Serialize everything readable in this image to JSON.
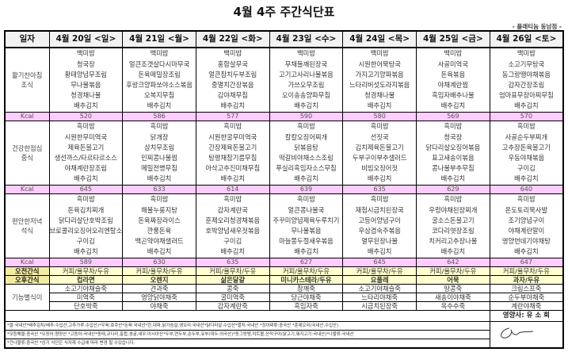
{
  "title": "4월 4주 주간식단표",
  "branch": "- 플래티늄 동남점 -",
  "header_label": "일자",
  "days": [
    "4월 20일 <일>",
    "4월 21일 <월>",
    "4월 22일 <화>",
    "4월 23일 <수>",
    "4월 24일 <목>",
    "4월 25일 <금>",
    "4월 26일 <토>"
  ],
  "kcal_label": "Kcal",
  "meals": [
    {
      "label": "활기찬아침\n조식",
      "menus": [
        [
          "백미밥",
          "청국장",
          "황태양념무조림",
          "무나물볶음",
          "청경채나물",
          "배추김치"
        ],
        [
          "백미밥",
          "얼큰조갯살다시마무국",
          "돈육메밀장조림",
          "후랑크양파쏘야소스볶음",
          "오복지무침",
          "배추김치"
        ],
        [
          "백미밥",
          "홍합살무국",
          "얼큰참치두부조림",
          "중멸치간장볶음",
          "김야채무침",
          "배추김치"
        ],
        [
          "백미밥",
          "무채들깨된장국",
          "고기고사리나물볶음",
          "가쓰오무조림",
          "오이송송양파무침",
          "배추김치"
        ],
        [
          "백미밥",
          "시원한어묵탕국",
          "가지고기양파볶음",
          "느타리버섯도라지볶음",
          "청경채나물",
          "배추김치"
        ],
        [
          "백미밥",
          "사골미역국",
          "돈육볶음",
          "야채계란찜",
          "흑임자배추나물",
          "배추김치"
        ],
        [
          "백미밥",
          "소고기무탕국",
          "동그랑땡야채볶음",
          "감자간장조림",
          "엄마표무장아찌무침",
          "배추김치"
        ]
      ],
      "kcal": [
        "520",
        "586",
        "577",
        "590",
        "580",
        "569",
        "570"
      ]
    },
    {
      "label": "건강한점심\n중식",
      "menus": [
        [
          "흑미밥",
          "시원한무미역국",
          "제육돈불고기",
          "생선까스/타르타르소스",
          "야채계란장조림",
          "배추김치"
        ],
        [
          "흑미밥",
          "닭개장",
          "삼치무조림",
          "민찌콩나물찜",
          "메밀전병무침",
          "배추김치"
        ],
        [
          "흑미밥",
          "시원한굴무미역국",
          "간장제육돈불고기",
          "탕평채참기름무침",
          "아삭고추진미채무침",
          "배추김치"
        ],
        [
          "흑미밥",
          "칼칼오징어찌개",
          "닭볶음탕",
          "떡갈비야채소스조림",
          "푸실리흑임자소스무침",
          "배추김치"
        ],
        [
          "흑미밥",
          "선짓국",
          "김치제육돈불고기",
          "두부구이부추샐러드",
          "비빔오징어젓",
          "배추김치"
        ],
        [
          "흑미밥",
          "청국장",
          "닭다리살오징어볶음",
          "표고새송이볶음",
          "콩나물부추무침",
          "배추김치"
        ],
        [
          "흑미밥",
          "사골순두부찌개",
          "고추장돈육불고기",
          "우동야채볶음",
          "구이김",
          "배추김치"
        ]
      ],
      "kcal": [
        "645",
        "633",
        "614",
        "639",
        "635",
        "629",
        "640"
      ]
    },
    {
      "label": "편안한저녁\n석식",
      "menus": [
        [
          "흑미밥",
          "돈육김치찌개",
          "닭다리살단호박조림",
          "브로콜리오징어오리엔탈소스",
          "구이김",
          "배추김치"
        ],
        [
          "흑미밥",
          "해물누룽지탕",
          "돈육짜장라이스",
          "깐풍돈육",
          "백곤약야채샐러드",
          "배추김치"
        ],
        [
          "흑미밥",
          "감자계란국",
          "훈제오리청경채볶음",
          "호박양념새우젓볶음",
          "구이김",
          "배추김치"
        ],
        [
          "흑미밥",
          "얼큰콩나물국",
          "주꾸미양념제육두루치기",
          "무나물볶음",
          "마늘쫑두절새우볶음",
          "배추김치"
        ],
        [
          "흑미밥",
          "재첩시금치된장국",
          "고등어양념구이",
          "우삼겹숙주볶음",
          "열무된장나물",
          "배추김치"
        ],
        [
          "흑미밥",
          "우렁야채된장찌개",
          "굴소스돈불고기",
          "코다리엿장조림",
          "치커리고추장나물",
          "배추김치"
        ],
        [
          "흑미밥",
          "온도토리묵사발",
          "조기양념구이",
          "야채계란말이",
          "영양번데기야채탕",
          "배추김치"
        ]
      ],
      "kcal": [
        "589",
        "630",
        "635",
        "627",
        "645",
        "642",
        "647"
      ]
    }
  ],
  "am_snack": {
    "label": "오전간식",
    "items": [
      "커피/율무차/두유",
      "커피/율무차/두유",
      "커피/율무차/두유",
      "커피/율무차/두유",
      "커피/율무차/두유",
      "커피/율무차/두유",
      "커피/율무차/두유"
    ]
  },
  "pm_snack": {
    "label": "오후간식",
    "items": [
      "컵라면",
      "오렌지",
      "삶은달걀",
      "미니카스테라/두유",
      "요플레",
      "어묵",
      "과자/두유"
    ]
  },
  "functional": {
    "label": "기능별식이",
    "rows": [
      [
        "소고기야채슬죽",
        "견과죽",
        "콩죽",
        "참깨죽",
        "소고기야채슬죽",
        "땅콩죽",
        "크림스프죽"
      ],
      [
        "미역죽",
        "영양닭야채죽",
        "굴미역죽",
        "당근야채죽",
        "느타리야채죽",
        "새송이야채죽",
        "순두부야채죽"
      ],
      [
        "단호박죽",
        "야채죽",
        "감자계란죽",
        "흑임자죽",
        "시금치된장죽",
        "옥수수죽",
        "계란야채죽"
      ]
    ]
  },
  "dietitian": "영양사: 유 소 희",
  "notes": [
    "*쌀:국내산*배추김치(배추:수입산,고추가루:수입산)*우육:호주산*돈육:국내산*한,대파,닭가슴살,생오리:국내산*닭다리살:수입산*멸치:국내산 *장아찌류:중국산 *훈제오리(국내산,수입산)",
    "*모듬해물:중국산 *오징어:원양산 *고등어:국내산*동태,코다리,홍합,생굴,새우:아시아산*두부,연두부,순두부,유부(대두:외국산)*동그랑땡,미트볼,산적구이(닭고기,돼지고기:국내산)*나물류:국내산",
    "*건나물류:중국산 *상기 식단은 식자재 수급에 따라 변경 될 수있습니다."
  ]
}
